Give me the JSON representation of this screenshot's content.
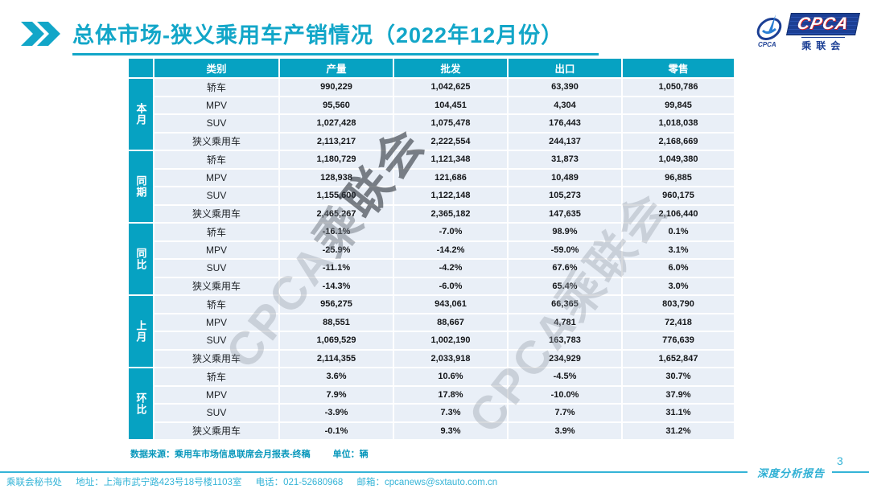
{
  "title": "总体市场-狭义乘用车产销情况（2022年12月份）",
  "logo": {
    "brand": "CPCA",
    "sub_brand": "乘联会"
  },
  "watermark": {
    "part1": "CPCA",
    "part2": "乘",
    "part3": "联会",
    "full": "CPCA乘联会"
  },
  "table": {
    "columns": [
      "类别",
      "产量",
      "批发",
      "出口",
      "零售"
    ],
    "groups": [
      {
        "label": "本月",
        "rows": [
          {
            "category": "轿车",
            "values": [
              "990,229",
              "1,042,625",
              "63,390",
              "1,050,786"
            ]
          },
          {
            "category": "MPV",
            "values": [
              "95,560",
              "104,451",
              "4,304",
              "99,845"
            ]
          },
          {
            "category": "SUV",
            "values": [
              "1,027,428",
              "1,075,478",
              "176,443",
              "1,018,038"
            ]
          },
          {
            "category": "狭义乘用车",
            "values": [
              "2,113,217",
              "2,222,554",
              "244,137",
              "2,168,669"
            ]
          }
        ]
      },
      {
        "label": "同期",
        "rows": [
          {
            "category": "轿车",
            "values": [
              "1,180,729",
              "1,121,348",
              "31,873",
              "1,049,380"
            ]
          },
          {
            "category": "MPV",
            "values": [
              "128,938",
              "121,686",
              "10,489",
              "96,885"
            ]
          },
          {
            "category": "SUV",
            "values": [
              "1,155,600",
              "1,122,148",
              "105,273",
              "960,175"
            ]
          },
          {
            "category": "狭义乘用车",
            "values": [
              "2,465,267",
              "2,365,182",
              "147,635",
              "2,106,440"
            ]
          }
        ]
      },
      {
        "label": "同比",
        "rows": [
          {
            "category": "轿车",
            "values": [
              "-16.1%",
              "-7.0%",
              "98.9%",
              "0.1%"
            ]
          },
          {
            "category": "MPV",
            "values": [
              "-25.9%",
              "-14.2%",
              "-59.0%",
              "3.1%"
            ]
          },
          {
            "category": "SUV",
            "values": [
              "-11.1%",
              "-4.2%",
              "67.6%",
              "6.0%"
            ]
          },
          {
            "category": "狭义乘用车",
            "values": [
              "-14.3%",
              "-6.0%",
              "65.4%",
              "3.0%"
            ]
          }
        ]
      },
      {
        "label": "上月",
        "rows": [
          {
            "category": "轿车",
            "values": [
              "956,275",
              "943,061",
              "66,365",
              "803,790"
            ]
          },
          {
            "category": "MPV",
            "values": [
              "88,551",
              "88,667",
              "4,781",
              "72,418"
            ]
          },
          {
            "category": "SUV",
            "values": [
              "1,069,529",
              "1,002,190",
              "163,783",
              "776,639"
            ]
          },
          {
            "category": "狭义乘用车",
            "values": [
              "2,114,355",
              "2,033,918",
              "234,929",
              "1,652,847"
            ]
          }
        ]
      },
      {
        "label": "环比",
        "rows": [
          {
            "category": "轿车",
            "values": [
              "3.6%",
              "10.6%",
              "-4.5%",
              "30.7%"
            ]
          },
          {
            "category": "MPV",
            "values": [
              "7.9%",
              "17.8%",
              "-10.0%",
              "37.9%"
            ]
          },
          {
            "category": "SUV",
            "values": [
              "-3.9%",
              "7.3%",
              "7.7%",
              "31.1%"
            ]
          },
          {
            "category": "狭义乘用车",
            "values": [
              "-0.1%",
              "9.3%",
              "3.9%",
              "31.2%"
            ]
          }
        ]
      }
    ]
  },
  "source_note": "数据来源：乘用车市场信息联席会月报表-终稿",
  "unit_note": "单位：辆",
  "footer": {
    "secretariat": "乘联会秘书处",
    "address": "地址：上海市武宁路423号18号楼1103室",
    "phone": "电话：021-52680968",
    "email": "邮箱：cpcanews@sxtauto.com.cn",
    "report_label": "深度分析报告",
    "page_number": "3"
  },
  "colors": {
    "accent_teal": "#12a6c8",
    "table_header_teal": "#06a2c2",
    "cell_background": "#e9eff7",
    "logo_navy": "#1c3f94",
    "footer_teal": "#35b4d7"
  }
}
